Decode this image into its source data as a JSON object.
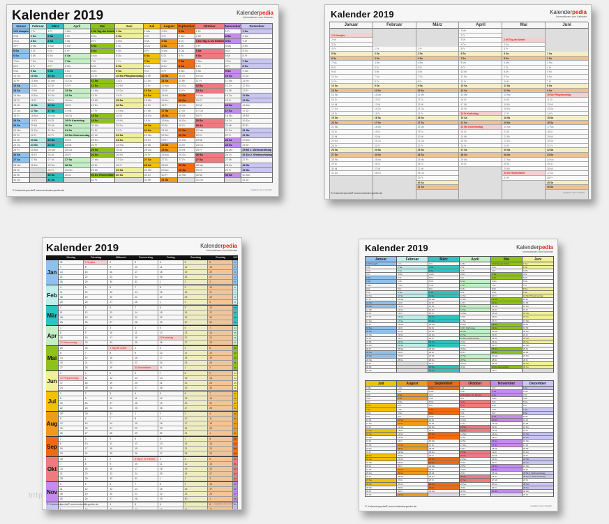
{
  "year": 2019,
  "title": "Kalender 2019",
  "logo": {
    "brand_a": "Kalender",
    "brand_b": "pedia",
    "tagline": "Informationen zum Kalender"
  },
  "footer": {
    "left": "© Kalenderpedia®   www.kalenderpedia.de",
    "right": "Angaben ohne Gewähr"
  },
  "watermark": "http",
  "colors": {
    "months": [
      "#8fc1ee",
      "#bfeeea",
      "#2fc2c2",
      "#c4efc6",
      "#8ec21a",
      "#f1f09a",
      "#f2c200",
      "#f09a1c",
      "#ef6a12",
      "#ef7a80",
      "#c48cee",
      "#c9c6f2"
    ],
    "saturday": "#f4efc4",
    "sunday": "#f0c08e",
    "holiday_bg": "#f4cfd0",
    "holiday_text": "#e2231a"
  },
  "months": [
    "Januar",
    "Februar",
    "März",
    "April",
    "Mai",
    "Juni",
    "Juli",
    "August",
    "September",
    "Oktober",
    "November",
    "Dezember"
  ],
  "months_short": [
    "Jan",
    "Feb",
    "Mär",
    "Apr",
    "Mai",
    "Jun",
    "Jul",
    "Aug",
    "Sep",
    "Okt",
    "Nov",
    "Dez"
  ],
  "weekday_abbr": [
    "Mo",
    "Di",
    "Mi",
    "Do",
    "Fr",
    "Sa",
    "So"
  ],
  "weekday_full": [
    "Montag",
    "Dienstag",
    "Mittwoch",
    "Donnerstag",
    "Freitag",
    "Samstag",
    "Sonntag"
  ],
  "kw_label": "KW",
  "holidays": {
    "1-1": "Neujahr",
    "4-19": "Karfreitag",
    "4-22": "Ostermontag",
    "5-1": "Tag der Arbeit",
    "5-30": "Himmelfahrt",
    "6-10": "Pfingstmontag",
    "10-3": "Tag d. Dt. Einheit",
    "12-25": "1. Weihnachtstag",
    "12-26": "2. Weihnachtstag"
  },
  "sheets": [
    {
      "id": "s1",
      "name": "year-calendar-12-columns"
    },
    {
      "id": "s2",
      "name": "half-year-calendar-landscape"
    },
    {
      "id": "s3",
      "name": "week-calendar-portrait"
    },
    {
      "id": "s4",
      "name": "two-half-years-portrait"
    }
  ]
}
